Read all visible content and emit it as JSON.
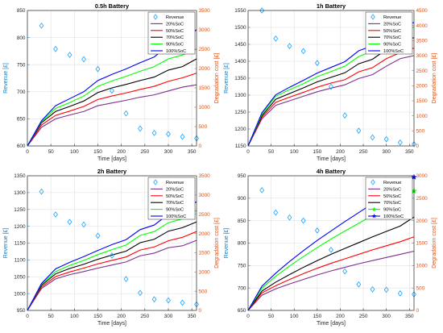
{
  "colors": {
    "revenue": "#1aa3ff",
    "ylabel_left": "#1f77b4",
    "ylabel_right": "#d95319",
    "soc20": "#7e2f8e",
    "soc50": "#ff0000",
    "soc70": "#000000",
    "soc90": "#00ff00",
    "soc100": "#0000ff"
  },
  "chart_data": [
    {
      "type": "line",
      "title": "0.5h Battery",
      "xlabel": "Time [days]",
      "ylabel": "Revenue [£]",
      "ylabel_right": "Degradation cost [£]",
      "xlim": [
        0,
        360
      ],
      "xticks": [
        0,
        50,
        100,
        150,
        200,
        250,
        300,
        350
      ],
      "ylim": [
        600,
        850
      ],
      "yticks": [
        600,
        650,
        700,
        750,
        800,
        850
      ],
      "ylim_right": [
        0,
        3500
      ],
      "yticks_right": [
        0,
        500,
        1000,
        1500,
        2000,
        2500,
        3000,
        3500
      ],
      "grid": true,
      "legend_position": "top-right",
      "revenue": {
        "name": "Revenue",
        "x": [
          30,
          60,
          90,
          120,
          150,
          180,
          210,
          240,
          270,
          300,
          330,
          360
        ],
        "y": [
          822,
          779,
          768,
          760,
          742,
          702,
          660,
          632,
          624,
          622,
          617,
          614
        ]
      },
      "series": [
        {
          "name": "20%SoC",
          "x": [
            0,
            30,
            60,
            90,
            120,
            150,
            180,
            210,
            240,
            270,
            300,
            330,
            360
          ],
          "y": [
            0,
            480,
            700,
            800,
            890,
            1040,
            1110,
            1180,
            1260,
            1320,
            1420,
            1520,
            1580
          ]
        },
        {
          "name": "50%SoC",
          "x": [
            0,
            30,
            60,
            90,
            120,
            150,
            180,
            210,
            240,
            270,
            300,
            330,
            360
          ],
          "y": [
            0,
            540,
            790,
            900,
            1020,
            1200,
            1290,
            1370,
            1460,
            1540,
            1670,
            1760,
            1880
          ]
        },
        {
          "name": "70%SoC",
          "x": [
            0,
            30,
            60,
            90,
            120,
            150,
            180,
            210,
            240,
            270,
            300,
            330,
            360
          ],
          "y": [
            0,
            600,
            890,
            1020,
            1160,
            1380,
            1500,
            1590,
            1690,
            1780,
            1960,
            2050,
            2250
          ]
        },
        {
          "name": "90%SoC",
          "x": [
            0,
            30,
            60,
            90,
            120,
            150,
            180,
            210,
            240,
            270,
            300,
            330,
            360
          ],
          "y": [
            0,
            630,
            970,
            1120,
            1290,
            1540,
            1680,
            1800,
            1930,
            2050,
            2250,
            2350,
            2500
          ]
        },
        {
          "name": "100%SoC",
          "x": [
            0,
            30,
            60,
            90,
            120,
            150,
            180,
            210,
            240,
            270,
            300,
            330,
            360
          ],
          "y": [
            0,
            650,
            1040,
            1220,
            1400,
            1690,
            1850,
            1990,
            2150,
            2300,
            2600,
            2750,
            3000
          ]
        }
      ]
    },
    {
      "type": "line",
      "title": "1h Battery",
      "xlabel": "Time [days]",
      "ylabel": "Revenue [£]",
      "ylabel_right": "Degradation cost [£]",
      "xlim": [
        0,
        360
      ],
      "xticks": [
        0,
        50,
        100,
        150,
        200,
        250,
        300,
        350
      ],
      "ylim": [
        1150,
        1550
      ],
      "yticks": [
        1150,
        1200,
        1250,
        1300,
        1350,
        1400,
        1450,
        1500,
        1550
      ],
      "ylim_right": [
        0,
        4500
      ],
      "yticks_right": [
        0,
        500,
        1000,
        1500,
        2000,
        2500,
        3000,
        3500,
        4000,
        4500
      ],
      "grid": true,
      "legend_position": "top-right",
      "revenue": {
        "name": "Revenue",
        "x": [
          30,
          60,
          90,
          120,
          150,
          180,
          210,
          240,
          270,
          300,
          330,
          360
        ],
        "y": [
          1550,
          1467,
          1445,
          1430,
          1395,
          1325,
          1240,
          1195,
          1175,
          1170,
          1160,
          1155
        ]
      },
      "series": [
        {
          "name": "20%SoC",
          "x": [
            0,
            30,
            60,
            90,
            120,
            150,
            180,
            210,
            240,
            270,
            300,
            330,
            360
          ],
          "y": [
            0,
            900,
            1350,
            1500,
            1650,
            1800,
            1920,
            2030,
            2240,
            2370,
            2650,
            2900,
            3000
          ]
        },
        {
          "name": "50%SoC",
          "x": [
            0,
            30,
            60,
            90,
            120,
            150,
            180,
            210,
            240,
            270,
            300,
            330,
            360
          ],
          "y": [
            0,
            950,
            1450,
            1620,
            1780,
            1950,
            2090,
            2200,
            2460,
            2600,
            2900,
            3100,
            3250
          ]
        },
        {
          "name": "70%SoC",
          "x": [
            0,
            30,
            60,
            90,
            120,
            150,
            180,
            210,
            240,
            270,
            300,
            330,
            360
          ],
          "y": [
            0,
            1000,
            1550,
            1740,
            1930,
            2130,
            2280,
            2430,
            2730,
            2880,
            3200,
            3450,
            3600
          ]
        },
        {
          "name": "90%SoC",
          "x": [
            0,
            30,
            60,
            90,
            120,
            150,
            180,
            210,
            240,
            270,
            300,
            330,
            360
          ],
          "y": [
            0,
            1050,
            1650,
            1870,
            2070,
            2300,
            2470,
            2650,
            2970,
            3150,
            3500,
            3760,
            3950
          ]
        },
        {
          "name": "100%SoC",
          "x": [
            0,
            30,
            60,
            90,
            120,
            150,
            180,
            210,
            240,
            270,
            300,
            330,
            360
          ],
          "y": [
            0,
            1100,
            1700,
            1950,
            2180,
            2420,
            2610,
            2800,
            3160,
            3330,
            3700,
            3970,
            4100
          ]
        }
      ]
    },
    {
      "type": "line",
      "title": "2h Battery",
      "xlabel": "Time [days]",
      "ylabel": "Revenue [£]",
      "ylabel_right": "Degradation cost [£]",
      "xlim": [
        0,
        360
      ],
      "xticks": [
        0,
        50,
        100,
        150,
        200,
        250,
        300,
        350
      ],
      "ylim": [
        950,
        1350
      ],
      "yticks": [
        950,
        1000,
        1050,
        1100,
        1150,
        1200,
        1250,
        1300,
        1350
      ],
      "ylim_right": [
        0,
        3500
      ],
      "yticks_right": [
        0,
        500,
        1000,
        1500,
        2000,
        2500,
        3000,
        3500
      ],
      "grid": true,
      "legend_position": "top-right",
      "revenue": {
        "name": "Revenue",
        "x": [
          30,
          60,
          90,
          120,
          150,
          180,
          210,
          240,
          270,
          300,
          330,
          360
        ],
        "y": [
          1303,
          1235,
          1213,
          1205,
          1172,
          1113,
          1043,
          1002,
          983,
          980,
          973,
          968
        ]
      },
      "series": [
        {
          "name": "20%SoC",
          "x": [
            0,
            30,
            60,
            90,
            120,
            150,
            180,
            210,
            240,
            270,
            300,
            330,
            360
          ],
          "y": [
            0,
            570,
            820,
            930,
            1010,
            1100,
            1180,
            1260,
            1420,
            1490,
            1630,
            1680,
            1820
          ]
        },
        {
          "name": "50%SoC",
          "x": [
            0,
            30,
            60,
            90,
            120,
            150,
            180,
            210,
            240,
            270,
            300,
            330,
            360
          ],
          "y": [
            0,
            610,
            880,
            1000,
            1100,
            1210,
            1300,
            1390,
            1570,
            1650,
            1810,
            1900,
            2050
          ]
        },
        {
          "name": "70%SoC",
          "x": [
            0,
            30,
            60,
            90,
            120,
            150,
            180,
            210,
            240,
            270,
            300,
            330,
            360
          ],
          "y": [
            0,
            650,
            950,
            1090,
            1200,
            1330,
            1440,
            1540,
            1760,
            1850,
            2060,
            2150,
            2300
          ]
        },
        {
          "name": "90%SoC",
          "x": [
            0,
            30,
            60,
            90,
            120,
            150,
            180,
            210,
            240,
            270,
            300,
            330,
            360
          ],
          "y": [
            0,
            680,
            1010,
            1170,
            1300,
            1450,
            1580,
            1700,
            1950,
            2050,
            2280,
            2380,
            2600
          ]
        },
        {
          "name": "100%SoC",
          "x": [
            0,
            30,
            60,
            90,
            120,
            150,
            180,
            210,
            240,
            270,
            300,
            330,
            360
          ],
          "y": [
            0,
            700,
            1080,
            1250,
            1400,
            1560,
            1710,
            1840,
            2100,
            2220,
            2500,
            2680,
            2820
          ]
        }
      ]
    },
    {
      "type": "line",
      "title": "4h Battery",
      "xlabel": "Time [days]",
      "ylabel": "Revenue [£]",
      "ylabel_right": "Degradation cost [£]",
      "xlim": [
        0,
        360
      ],
      "xticks": [
        0,
        50,
        100,
        150,
        200,
        250,
        300,
        350
      ],
      "ylim": [
        650,
        950
      ],
      "yticks": [
        650,
        700,
        750,
        800,
        850,
        900,
        950
      ],
      "ylim_right": [
        0,
        3000
      ],
      "yticks_right": [
        0,
        500,
        1000,
        1500,
        2000,
        2500,
        3000
      ],
      "grid": true,
      "legend_position": "top-right",
      "revenue": {
        "name": "Revenue",
        "x": [
          30,
          60,
          90,
          120,
          150,
          180,
          210,
          240,
          270,
          300,
          330,
          360
        ],
        "y": [
          918,
          868,
          857,
          850,
          828,
          785,
          737,
          708,
          697,
          696,
          688,
          686
        ]
      },
      "series": [
        {
          "name": "20%SoC",
          "x": [
            0,
            30,
            60,
            90,
            120,
            150,
            180,
            210,
            240,
            270,
            300,
            330,
            360
          ],
          "y": [
            0,
            340,
            480,
            590,
            690,
            790,
            880,
            960,
            1040,
            1110,
            1180,
            1250,
            1320
          ],
          "markers": false
        },
        {
          "name": "50%SoC",
          "x": [
            0,
            30,
            60,
            90,
            120,
            150,
            180,
            210,
            240,
            270,
            300,
            330,
            360
          ],
          "y": [
            0,
            390,
            550,
            690,
            820,
            940,
            1050,
            1150,
            1250,
            1350,
            1440,
            1530,
            1640
          ],
          "markers": false
        },
        {
          "name": "70%SoC",
          "x": [
            0,
            30,
            60,
            90,
            120,
            150,
            180,
            210,
            240,
            270,
            300,
            330,
            360
          ],
          "y": [
            0,
            430,
            630,
            800,
            960,
            1110,
            1250,
            1380,
            1510,
            1640,
            1760,
            1880,
            2080
          ],
          "markers": false
        },
        {
          "name": "90%SoC",
          "x": [
            0,
            30,
            60,
            90,
            120,
            150,
            180,
            210,
            240,
            270,
            300,
            330,
            360
          ],
          "y": [
            0,
            500,
            760,
            990,
            1200,
            1400,
            1590,
            1770,
            1940,
            2120,
            2290,
            2450,
            2660
          ],
          "markers": true
        },
        {
          "name": "100%SoC",
          "x": [
            0,
            30,
            60,
            90,
            120,
            150,
            180,
            210,
            240,
            270,
            300,
            330,
            360
          ],
          "y": [
            0,
            540,
            830,
            1090,
            1330,
            1560,
            1770,
            1980,
            2180,
            2380,
            2570,
            2760,
            2970
          ],
          "markers": true
        }
      ]
    }
  ]
}
